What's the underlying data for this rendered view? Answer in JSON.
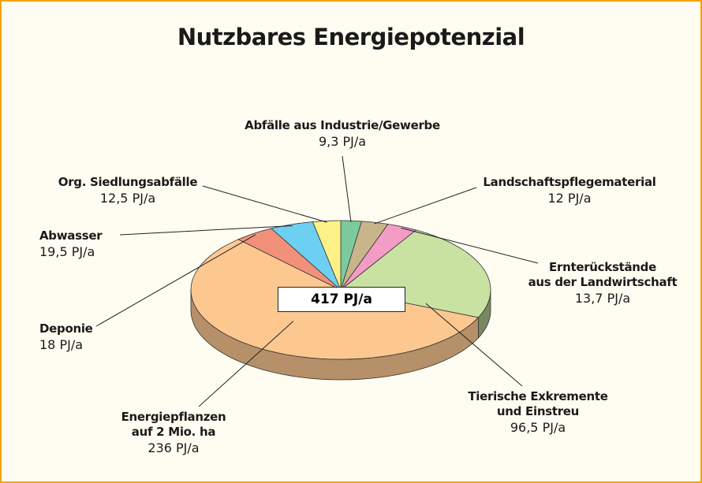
{
  "chart_data": {
    "type": "pie",
    "title": "Nutzbares Energiepotenzial",
    "total_label": "417 PJ/a",
    "categories": [
      "Abfälle aus Industrie/Gewerbe",
      "Landschaftspflegematerial",
      "Ernterückstände\naus der Landwirtschaft",
      "Tierische Exkremente\nund Einstreu",
      "Energiepflanzen\nauf 2 Mio. ha",
      "Deponie",
      "Abwasser",
      "Org. Siedlungsabfälle"
    ],
    "values": [
      9.3,
      12,
      13.7,
      96.5,
      236,
      18,
      19.5,
      12.5
    ],
    "value_labels": [
      "9,3 PJ/a",
      "12 PJ/a",
      "13,7 PJ/a",
      "96,5 PJ/a",
      "236 PJ/a",
      "18 PJ/a",
      "19,5 PJ/a",
      "12,5 PJ/a"
    ],
    "colors": [
      "#7ccb9c",
      "#c9b58b",
      "#f39cc6",
      "#c9e2a2",
      "#fdc890",
      "#f2917a",
      "#6dcff2",
      "#fcf188"
    ]
  }
}
